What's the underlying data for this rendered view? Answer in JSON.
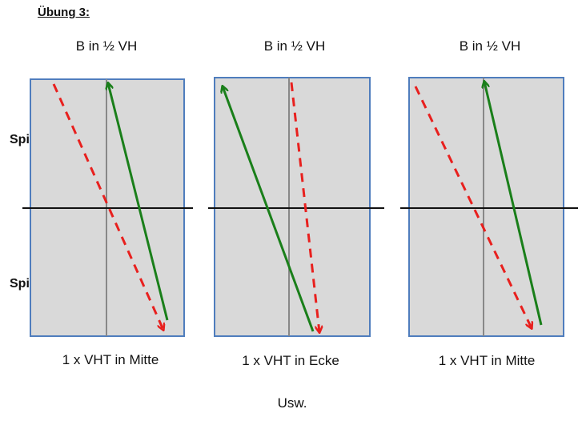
{
  "title": "Übung 3:",
  "players": {
    "a": "Spieler A",
    "b": "Spieler B"
  },
  "panels": [
    {
      "top_label": "B in ½ VH",
      "bottom_label": "1 x VHT in Mitte"
    },
    {
      "top_label": "B in ½ VH",
      "bottom_label": "1 x VHT in Ecke"
    },
    {
      "top_label": "B in ½ VH",
      "bottom_label": "1 x VHT in Mitte"
    }
  ],
  "footer": "Usw.",
  "colors": {
    "court_fill": "#d9d9d9",
    "court_border": "#4f7dbd",
    "net_line": "#111111",
    "center_line": "#888888",
    "solid_arrow": "#1a7f1a",
    "dashed_arrow": "#e8201e"
  }
}
